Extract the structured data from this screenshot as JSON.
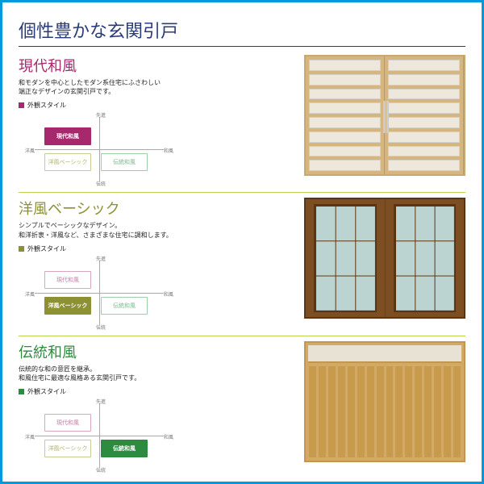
{
  "main_title": "個性豊かな玄関引戸",
  "legend_label": "外観スタイル",
  "axis_labels": {
    "top": "先進",
    "bottom": "伝統",
    "left": "洋風",
    "right": "和風"
  },
  "quadrant_names": {
    "tl": "現代和風",
    "bl": "洋風ベーシック",
    "br": "伝統和風"
  },
  "colors": {
    "modern": "#a8286e",
    "basic": "#8d9134",
    "trad": "#2d8b3f"
  },
  "styles": [
    {
      "key": "modern",
      "title": "現代和風",
      "color_class": "magenta",
      "desc": "和モダンを中心としたモダン系住宅にふさわしい\n端正なデザインの玄関引戸です。",
      "active_quadrant": "tl",
      "door_type": "slotted"
    },
    {
      "key": "basic",
      "title": "洋風ベーシック",
      "color_class": "olive",
      "desc": "シンプルでベーシックなデザイン。\n和洋折衷・洋風など、さまざまな住宅に調和します。",
      "active_quadrant": "bl",
      "door_type": "grid"
    },
    {
      "key": "trad",
      "title": "伝統和風",
      "color_class": "green",
      "desc": "伝統的な和の意匠を継承。\n和風住宅に最適な風格ある玄関引戸です。",
      "active_quadrant": "br",
      "door_type": "slatted"
    }
  ]
}
